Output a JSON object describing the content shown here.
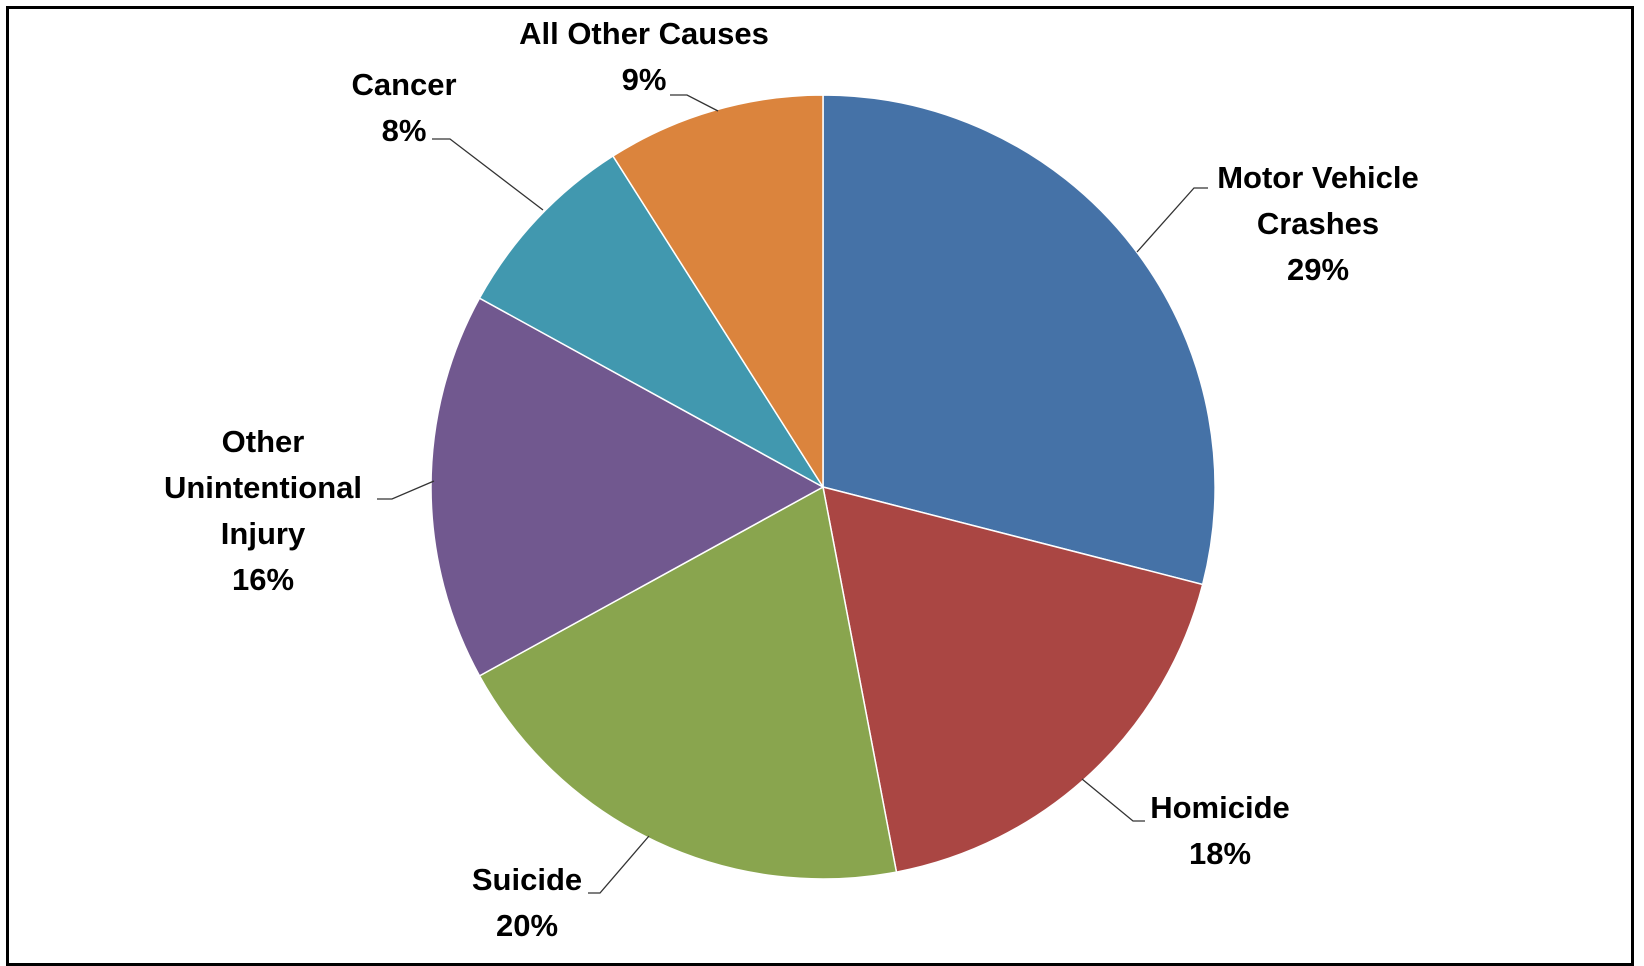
{
  "chart_data": {
    "type": "pie",
    "title": "",
    "start_angle_deg": 0,
    "direction": "clockwise",
    "slices": [
      {
        "label_lines": [
          "Motor Vehicle",
          "Crashes"
        ],
        "percent_label": "29%",
        "value": 29,
        "color": "#4572A7"
      },
      {
        "label_lines": [
          "Homicide"
        ],
        "percent_label": "18%",
        "value": 18,
        "color": "#AA4643"
      },
      {
        "label_lines": [
          "Suicide"
        ],
        "percent_label": "20%",
        "value": 20,
        "color": "#89A54E"
      },
      {
        "label_lines": [
          "Other",
          "Unintentional",
          "Injury"
        ],
        "percent_label": "16%",
        "value": 16,
        "color": "#71588F"
      },
      {
        "label_lines": [
          "Cancer"
        ],
        "percent_label": "8%",
        "value": 8,
        "color": "#4198AF"
      },
      {
        "label_lines": [
          "All Other Causes"
        ],
        "percent_label": "9%",
        "value": 9,
        "color": "#DB843D"
      }
    ]
  }
}
